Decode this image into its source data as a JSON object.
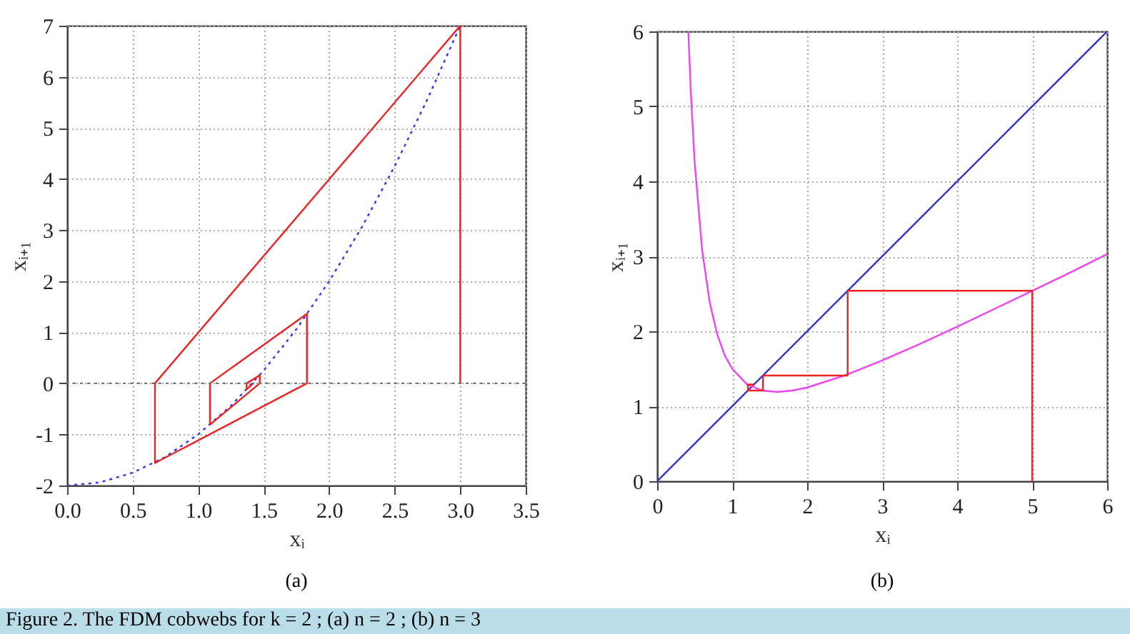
{
  "chart_data": [
    {
      "type": "line",
      "xlabel": "xᵢ",
      "ylabel": "xᵢ₊₁",
      "xlim": [
        0,
        3.5
      ],
      "ylim": [
        -2,
        7
      ],
      "xticks": [
        {
          "value": 0,
          "label": "0.0"
        },
        {
          "value": 0.5,
          "label": "0.5"
        },
        {
          "value": 1,
          "label": "1.0"
        },
        {
          "value": 1.5,
          "label": "1.5"
        },
        {
          "value": 2,
          "label": "2.0"
        },
        {
          "value": 2.5,
          "label": "2.5"
        },
        {
          "value": 3,
          "label": "3.0"
        },
        {
          "value": 3.5,
          "label": "3.5"
        }
      ],
      "yticks": [
        -2,
        -1,
        0,
        1,
        2,
        3,
        4,
        5,
        6,
        7
      ],
      "grid": true,
      "ref_lines": [
        {
          "axis": "y",
          "value": 0,
          "color": "#777777",
          "line_style": "dotted"
        }
      ],
      "annotations": [
        "(a)"
      ],
      "series": [
        {
          "type": "line",
          "color": "#3333ee",
          "line_style": "dotted",
          "x": [
            0,
            0.25,
            0.5,
            0.75,
            1,
            1.25,
            1.5,
            1.75,
            2,
            2.25,
            2.5,
            2.75,
            3
          ],
          "values": [
            -2,
            -1.94,
            -1.75,
            -1.44,
            -1,
            -0.44,
            0.25,
            1.06,
            2,
            3.06,
            4.25,
            5.56,
            7
          ]
        },
        {
          "type": "line",
          "color": "#ee2222",
          "x": [
            3,
            3,
            0.67,
            0.67,
            1.83,
            1.83,
            1.09,
            1.09,
            1.47,
            1.47,
            1.37,
            1.37,
            1.42
          ],
          "values": [
            0,
            7,
            0,
            -1.56,
            0,
            1.36,
            0,
            -0.81,
            0,
            0.16,
            0,
            -0.12,
            0
          ]
        }
      ]
    },
    {
      "type": "line",
      "xlabel": "xᵢ",
      "ylabel": "xᵢ₊₁",
      "xlim": [
        0,
        6
      ],
      "ylim": [
        0,
        6
      ],
      "xticks": [
        0,
        1,
        2,
        3,
        4,
        5,
        6
      ],
      "yticks": [
        0,
        1,
        2,
        3,
        4,
        5,
        6
      ],
      "grid": true,
      "annotations": [
        "(b)",
        "Figure 2. The FDM cobwebs for k = 2 ; (a) n = 2 ; (b) n = 3"
      ],
      "series": [
        {
          "type": "line",
          "color": "#3333cc",
          "x": [
            0,
            6
          ],
          "values": [
            0,
            6
          ]
        },
        {
          "type": "line",
          "color": "#ee44ee",
          "x": [
            0.416,
            0.45,
            0.5,
            0.6,
            0.7,
            0.8,
            0.9,
            1,
            1.2,
            1.4,
            1.6,
            1.8,
            2,
            2.5,
            3,
            3.5,
            4,
            4.5,
            5,
            5.5,
            6
          ],
          "values": [
            5.99,
            5.16,
            4.25,
            3.08,
            2.39,
            1.96,
            1.68,
            1.5,
            1.29,
            1.21,
            1.19,
            1.21,
            1.25,
            1.41,
            1.61,
            1.83,
            2.06,
            2.3,
            2.54,
            2.78,
            3.03
          ]
        },
        {
          "type": "line",
          "color": "#ee2222",
          "x": [
            5,
            5,
            2.54,
            2.54,
            1.41,
            1.41,
            1.21,
            1.21,
            1.29
          ],
          "values": [
            0,
            2.54,
            2.54,
            1.41,
            1.41,
            1.21,
            1.21,
            1.29,
            1.29
          ]
        }
      ]
    }
  ]
}
